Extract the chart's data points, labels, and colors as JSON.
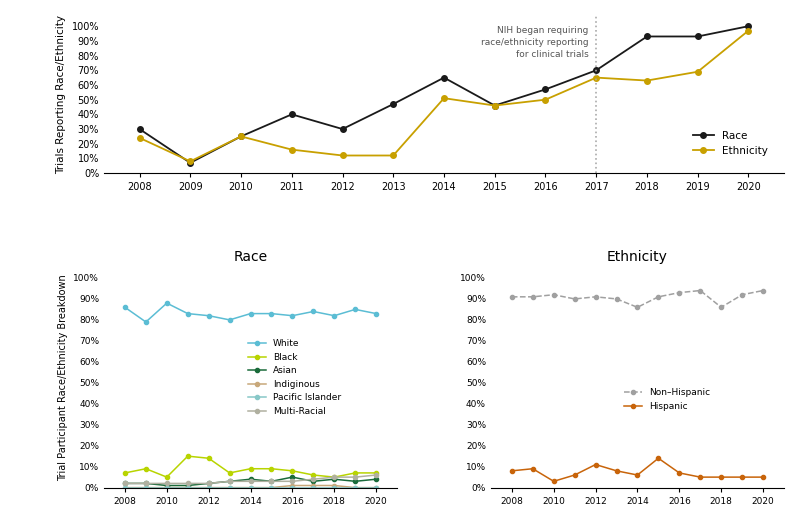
{
  "top_years": [
    2008,
    2009,
    2010,
    2011,
    2012,
    2013,
    2014,
    2015,
    2016,
    2017,
    2018,
    2019,
    2020
  ],
  "race_reporting": [
    30,
    7,
    25,
    40,
    30,
    47,
    65,
    46,
    57,
    70,
    93,
    93,
    100
  ],
  "ethnicity_reporting": [
    24,
    8,
    25,
    16,
    12,
    12,
    51,
    46,
    50,
    65,
    63,
    69,
    97
  ],
  "race_color": "#1a1a1a",
  "ethnicity_color": "#c8a000",
  "vline_year": 2017,
  "annotation_text": "NIH began requiring\nrace/ethnicity reporting\nfor clinical trials",
  "race_years": [
    2008,
    2009,
    2010,
    2011,
    2012,
    2013,
    2014,
    2015,
    2016,
    2017,
    2018,
    2019,
    2020
  ],
  "white": [
    86,
    79,
    88,
    83,
    82,
    80,
    83,
    83,
    82,
    84,
    82,
    85,
    83
  ],
  "black": [
    7,
    9,
    5,
    15,
    14,
    7,
    9,
    9,
    8,
    6,
    5,
    7,
    7
  ],
  "asian": [
    2,
    2,
    1,
    1,
    2,
    3,
    4,
    3,
    5,
    3,
    4,
    3,
    4
  ],
  "indigenous": [
    0,
    0,
    0,
    0,
    0,
    0,
    0,
    0,
    1,
    1,
    1,
    0,
    0
  ],
  "pacific_islander": [
    0,
    0,
    0,
    0,
    0,
    0,
    0,
    0,
    0,
    0,
    0,
    0,
    0
  ],
  "multi_racial": [
    2,
    2,
    2,
    2,
    2,
    3,
    3,
    3,
    3,
    4,
    5,
    5,
    6
  ],
  "white_color": "#5bbdd4",
  "black_color": "#b8d400",
  "asian_color": "#1a6b3a",
  "indigenous_color": "#c8a87a",
  "pacific_color": "#88c8c8",
  "multi_color": "#b0b0a0",
  "eth_years": [
    2008,
    2009,
    2010,
    2011,
    2012,
    2013,
    2014,
    2015,
    2016,
    2017,
    2018,
    2019,
    2020
  ],
  "non_hispanic": [
    91,
    91,
    92,
    90,
    91,
    90,
    86,
    91,
    93,
    94,
    86,
    92,
    94
  ],
  "hispanic": [
    8,
    9,
    3,
    6,
    11,
    8,
    6,
    14,
    7,
    5,
    5,
    5,
    5
  ],
  "non_hispanic_color": "#a0a0a0",
  "hispanic_color": "#c8640a",
  "top_ylabel": "Trials Reporting Race/Ethnicity",
  "bottom_ylabel": "Trial Participant Race/Ethnicity Breakdown",
  "race_title": "Race",
  "ethnicity_title": "Ethnicity",
  "background_color": "#ffffff"
}
